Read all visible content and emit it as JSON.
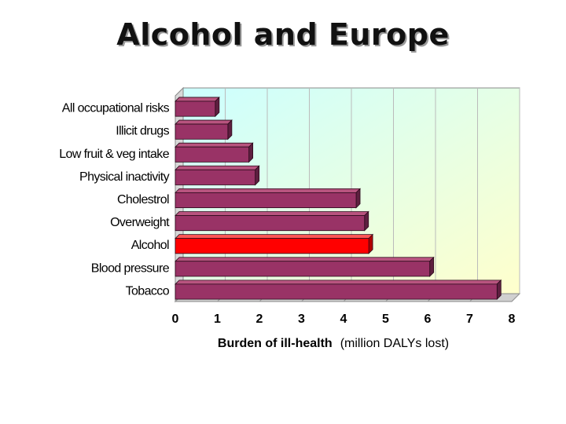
{
  "slide": {
    "title": "Alcohol and Europe"
  },
  "chart_data": {
    "type": "bar",
    "orientation": "horizontal",
    "title": "",
    "categories": [
      "All occupational risks",
      "Illicit drugs",
      "Low fruit & veg intake",
      "Physical inactivity",
      "Cholestrol",
      "Overweight",
      "Alcohol",
      "Blood pressure",
      "Tobacco"
    ],
    "values": [
      0.95,
      1.25,
      1.75,
      1.9,
      4.3,
      4.5,
      4.6,
      6.05,
      7.65
    ],
    "highlight": "Alcohol",
    "xlabel_bold": "Burden of ill-health",
    "xlabel_normal": "(million DALYs lost)",
    "xlim": [
      0,
      8
    ],
    "xticks": [
      "0",
      "1",
      "2",
      "3",
      "4",
      "5",
      "6",
      "7",
      "8"
    ],
    "grid": true,
    "colors": {
      "bar_fill": "#993366",
      "bar_top": "#b8547f",
      "bar_side": "#5e1f40",
      "highlight_fill": "#ff0000",
      "highlight_top": "#ff5555",
      "highlight_side": "#b00000",
      "plot_bg_top": "#ccffff",
      "plot_bg_bottom": "#ffffcc",
      "grid": "#bbbbbb"
    }
  }
}
